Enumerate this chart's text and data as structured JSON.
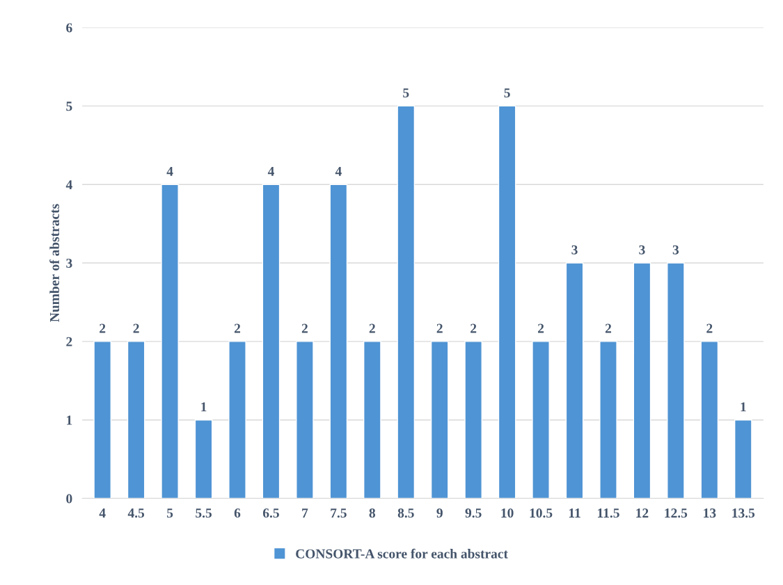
{
  "chart_data": {
    "type": "bar",
    "ylabel": "Number of abstracts",
    "categories": [
      "4",
      "4.5",
      "5",
      "5.5",
      "6",
      "6.5",
      "7",
      "7.5",
      "8",
      "8.5",
      "9",
      "9.5",
      "10",
      "10.5",
      "11",
      "11.5",
      "12",
      "12.5",
      "13",
      "13.5"
    ],
    "series": [
      {
        "name": "CONSORT-A score for each abstract",
        "color": "#4f94d4",
        "values": [
          2,
          2,
          4,
          1,
          2,
          4,
          2,
          4,
          2,
          5,
          2,
          2,
          5,
          2,
          3,
          2,
          3,
          3,
          2,
          1
        ]
      }
    ],
    "ylim": [
      0,
      6
    ],
    "yticks": [
      0,
      1,
      2,
      3,
      4,
      5,
      6
    ],
    "grid": "y",
    "legend": "bottom",
    "data_labels": true
  }
}
